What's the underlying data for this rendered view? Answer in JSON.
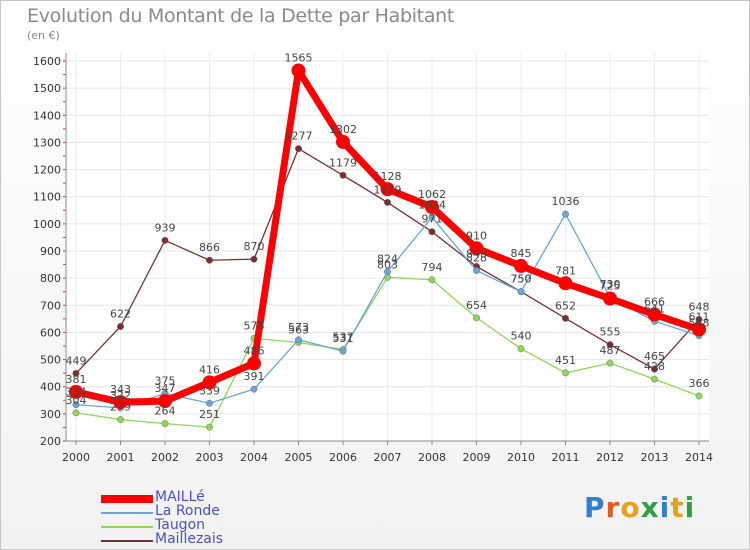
{
  "title": "Evolution du Montant de la Dette par Habitant",
  "unit": "(en €)",
  "logo": "Proxiti",
  "chart_data": {
    "type": "line",
    "title": "Evolution du Montant de la Dette par Habitant",
    "ylabel": "(en €)",
    "ylim": [
      200,
      1600
    ],
    "yticks": [
      200,
      300,
      400,
      500,
      600,
      700,
      800,
      900,
      1000,
      1100,
      1200,
      1300,
      1400,
      1500,
      1600
    ],
    "x": [
      "2000",
      "2001",
      "2002",
      "2003",
      "2004",
      "2005",
      "2006",
      "2007",
      "2008",
      "2009",
      "2010",
      "2011",
      "2012",
      "2013",
      "2014"
    ],
    "legend_position": "bottom-left",
    "grid": true,
    "series": [
      {
        "name": "MAILLé",
        "color": "#ff0000",
        "values": [
          381,
          343,
          347,
          416,
          486,
          1565,
          1302,
          1128,
          1062,
          910,
          845,
          781,
          725,
          666,
          611
        ]
      },
      {
        "name": "La Ronde",
        "color": "#6aa6d8",
        "values": [
          334,
          322,
          375,
          339,
          391,
          573,
          531,
          824,
          1024,
          828,
          750,
          1036,
          730,
          641,
          588
        ]
      },
      {
        "name": "Taugon",
        "color": "#8fd65a",
        "values": [
          304,
          279,
          264,
          251,
          578,
          563,
          537,
          803,
          794,
          654,
          540,
          451,
          487,
          428,
          366
        ]
      },
      {
        "name": "Maillezais",
        "color": "#7a3030",
        "values": [
          449,
          622,
          939,
          866,
          870,
          1277,
          1179,
          1079,
          971,
          843,
          750,
          652,
          555,
          465,
          648
        ]
      }
    ]
  }
}
